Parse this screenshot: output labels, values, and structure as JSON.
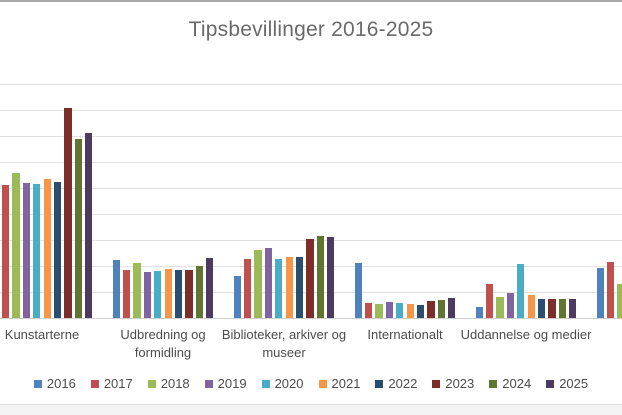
{
  "chart_data": {
    "type": "bar",
    "title": "Tipsbevillinger 2016-2025",
    "xlabel": "",
    "ylabel": "",
    "ylim": [
      0,
      10
    ],
    "gridline_step": 1,
    "grid": true,
    "legend_position": "bottom",
    "value_unit": "gridline steps (y-axis value labels cropped off left edge of image)",
    "layout_notes": "first category's 2016 bar cropped off left edge; sixth category and its label cropped off right edge; null = bar not visible in screenshot",
    "categories": [
      "Kunstarterne",
      "Udbredning og formidling",
      "Biblioteker, arkiver og museer",
      "Internationalt",
      "Uddannelse og medier",
      ""
    ],
    "series": [
      {
        "name": "2016",
        "color": "#4F81BD",
        "values": [
          null,
          2.23,
          1.63,
          2.1,
          0.43,
          1.93
        ]
      },
      {
        "name": "2017",
        "color": "#C0504D",
        "values": [
          5.12,
          1.85,
          2.26,
          0.59,
          1.3,
          2.14
        ]
      },
      {
        "name": "2018",
        "color": "#9BBB59",
        "values": [
          5.58,
          2.13,
          2.62,
          0.54,
          0.82,
          1.3
        ]
      },
      {
        "name": "2019",
        "color": "#8064A2",
        "values": [
          5.19,
          1.78,
          2.68,
          0.63,
          0.95,
          null
        ]
      },
      {
        "name": "2020",
        "color": "#4BACC6",
        "values": [
          5.15,
          1.8,
          2.26,
          0.57,
          2.08,
          null
        ]
      },
      {
        "name": "2021",
        "color": "#F79646",
        "values": [
          5.35,
          1.88,
          2.33,
          0.55,
          0.88,
          null
        ]
      },
      {
        "name": "2022",
        "color": "#2A4D70",
        "values": [
          5.23,
          1.86,
          2.36,
          0.5,
          0.72,
          null
        ]
      },
      {
        "name": "2023",
        "color": "#7B2E2A",
        "values": [
          8.08,
          1.83,
          3.04,
          0.65,
          0.72,
          null
        ]
      },
      {
        "name": "2024",
        "color": "#5F7530",
        "values": [
          6.88,
          2.0,
          3.15,
          0.69,
          0.72,
          null
        ]
      },
      {
        "name": "2025",
        "color": "#4C3A60",
        "values": [
          7.12,
          2.3,
          3.13,
          0.76,
          0.72,
          null
        ]
      }
    ]
  }
}
